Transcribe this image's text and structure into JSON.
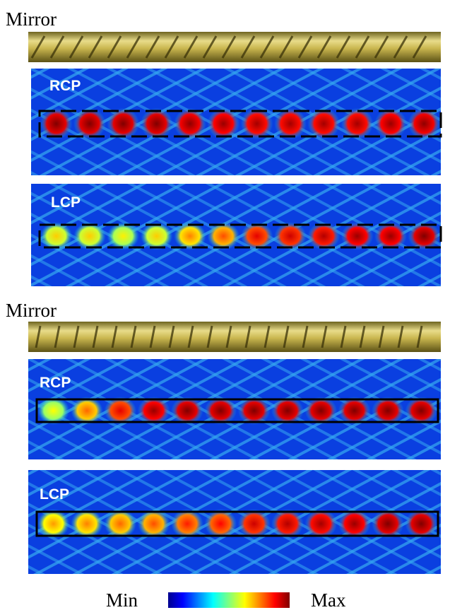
{
  "figure": {
    "sections": [
      {
        "label": "Mirror",
        "panels": [
          {
            "label": "RCP"
          },
          {
            "label": "LCP"
          }
        ]
      },
      {
        "label": "Mirror",
        "panels": [
          {
            "label": "RCP"
          },
          {
            "label": "LCP"
          }
        ]
      }
    ],
    "colorbar": {
      "min_label": "Min",
      "max_label": "Max"
    }
  }
}
